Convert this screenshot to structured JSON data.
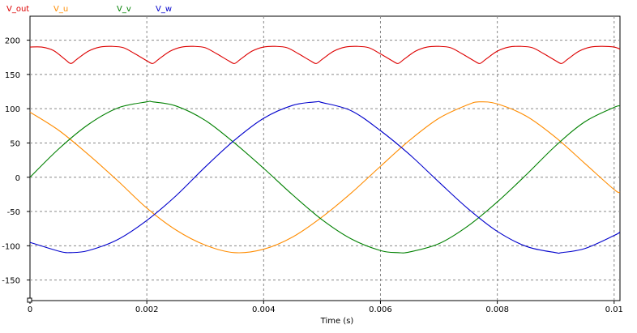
{
  "chart_data": {
    "type": "line",
    "title": "",
    "xlabel": "Time (s)",
    "ylabel": "",
    "xlim": [
      0,
      0.0101
    ],
    "ylim": [
      -180,
      235
    ],
    "grid": true,
    "x_ticks": [
      0,
      0.002,
      0.004,
      0.006,
      0.008,
      0.01
    ],
    "x_tick_labels": [
      "0",
      "0.002",
      "0.004",
      "0.006",
      "0.008",
      "0.01"
    ],
    "y_ticks": [
      200,
      150,
      100,
      50,
      0,
      -50,
      -100,
      -150
    ],
    "y_tick_labels": [
      "200",
      "150",
      "100",
      "50",
      "0",
      "-50",
      "-100",
      "-150"
    ],
    "legend_position": "top-left",
    "series": [
      {
        "name": "V_out",
        "color": "#dd0000",
        "x": [
          0,
          0.0002,
          0.0004,
          0.0006,
          0.0007,
          0.0008,
          0.001,
          0.0012,
          0.0014,
          0.0016,
          0.0018,
          0.002,
          0.0021,
          0.0022,
          0.0024,
          0.0026,
          0.0028,
          0.003,
          0.0032,
          0.0034,
          0.0035,
          0.0036,
          0.0038,
          0.004,
          0.0042,
          0.0044,
          0.0046,
          0.0048,
          0.0049,
          0.005,
          0.0052,
          0.0054,
          0.0056,
          0.0058,
          0.006,
          0.0062,
          0.0063,
          0.0064,
          0.0066,
          0.0068,
          0.007,
          0.0072,
          0.0074,
          0.0076,
          0.0077,
          0.0078,
          0.008,
          0.0082,
          0.0084,
          0.0086,
          0.0088,
          0.009,
          0.0091,
          0.0092,
          0.0094,
          0.0096,
          0.0098,
          0.01,
          0.0101
        ],
        "y": [
          190,
          190,
          185,
          172,
          166,
          172,
          184,
          190,
          191,
          189,
          180,
          170,
          166,
          172,
          184,
          190,
          191,
          189,
          180,
          170,
          166,
          172,
          184,
          190,
          191,
          189,
          180,
          170,
          166,
          172,
          184,
          190,
          191,
          189,
          180,
          170,
          166,
          172,
          184,
          190,
          191,
          189,
          180,
          170,
          166,
          172,
          184,
          190,
          191,
          189,
          180,
          170,
          166,
          172,
          184,
          190,
          191,
          190,
          187
        ]
      },
      {
        "name": "V_u",
        "color": "#ff8c00",
        "x": [
          0,
          0.0005,
          0.001,
          0.0015,
          0.002,
          0.0025,
          0.003,
          0.0035,
          0.004,
          0.0045,
          0.005,
          0.0055,
          0.006,
          0.0065,
          0.007,
          0.0075,
          0.0077,
          0.008,
          0.0085,
          0.009,
          0.0095,
          0.01,
          0.0101
        ],
        "y": [
          95,
          68,
          33,
          -5,
          -45,
          -77,
          -99,
          -110,
          -105,
          -87,
          -58,
          -23,
          16,
          54,
          86,
          106,
          110,
          107,
          89,
          58,
          20,
          -18,
          -22
        ]
      },
      {
        "name": "V_v",
        "color": "#008000",
        "x": [
          0,
          0.0005,
          0.001,
          0.0015,
          0.002,
          0.0021,
          0.0025,
          0.003,
          0.0035,
          0.004,
          0.0045,
          0.005,
          0.0055,
          0.006,
          0.0063,
          0.0065,
          0.007,
          0.0075,
          0.008,
          0.0085,
          0.009,
          0.0095,
          0.01,
          0.0101
        ],
        "y": [
          0,
          42,
          77,
          101,
          110,
          110,
          104,
          83,
          50,
          13,
          -26,
          -62,
          -90,
          -107,
          -110,
          -109,
          -97,
          -71,
          -36,
          4,
          46,
          81,
          102,
          104
        ]
      },
      {
        "name": "V_w",
        "color": "#0000cc",
        "x": [
          0,
          0.0005,
          0.0007,
          0.001,
          0.0015,
          0.002,
          0.0025,
          0.003,
          0.0035,
          0.004,
          0.0045,
          0.0049,
          0.005,
          0.0055,
          0.006,
          0.0065,
          0.007,
          0.0075,
          0.008,
          0.0085,
          0.009,
          0.0091,
          0.0095,
          0.01,
          0.0101
        ],
        "y": [
          -95,
          -108,
          -110,
          -107,
          -91,
          -63,
          -27,
          15,
          54,
          86,
          105,
          110,
          109,
          97,
          68,
          33,
          -7,
          -46,
          -79,
          -101,
          -110,
          -110,
          -104,
          -85,
          -80
        ]
      }
    ]
  }
}
